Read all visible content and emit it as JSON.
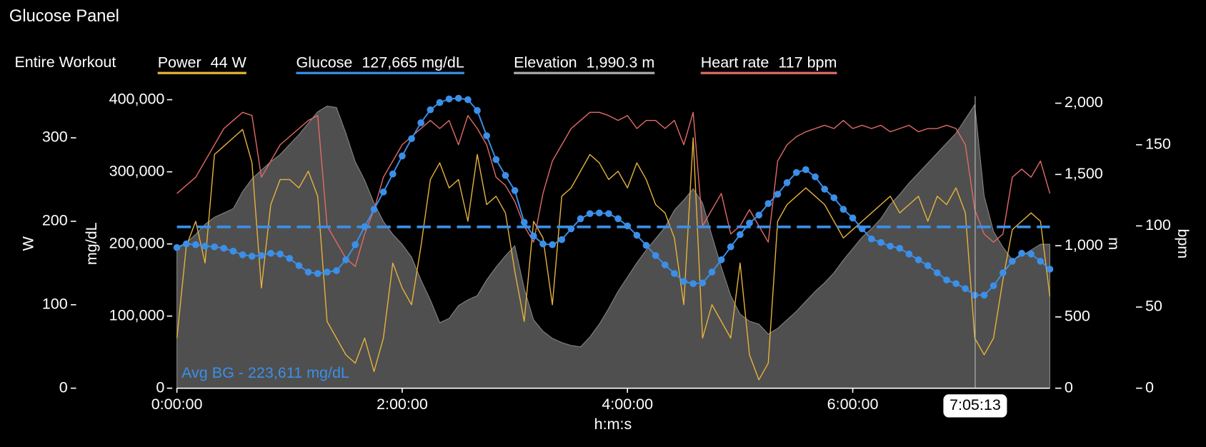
{
  "chart_data": {
    "type": "line",
    "title": "Glucose Panel",
    "legend_title": "Entire Workout",
    "xlabel": "h:m:s",
    "xlim": [
      0,
      27900
    ],
    "xticks": [
      {
        "value": 0,
        "label": "0:00:00"
      },
      {
        "value": 7200,
        "label": "2:00:00"
      },
      {
        "value": 14400,
        "label": "4:00:00"
      },
      {
        "value": 21600,
        "label": "6:00:00"
      }
    ],
    "ylabel": "W",
    "ylim": [
      0,
      350
    ],
    "yticks": [
      0,
      100,
      200,
      300
    ],
    "y2label": "mg/dL",
    "y2lim": [
      0,
      405000
    ],
    "y2ticks": [
      0,
      {
        "value": 100000,
        "label": "100,000"
      },
      {
        "value": 200000,
        "label": "200,000"
      },
      {
        "value": 300000,
        "label": "300,000"
      },
      {
        "value": 400000,
        "label": "400,000"
      }
    ],
    "y3label": "m",
    "y3lim": [
      0,
      2050
    ],
    "y3ticks": [
      0,
      500,
      {
        "value": 1000,
        "label": "1,000"
      },
      {
        "value": 1500,
        "label": "1,500"
      },
      {
        "value": 2000,
        "label": "2,000"
      }
    ],
    "y4label": "bpm",
    "y4lim": [
      0,
      180
    ],
    "y4ticks": [
      0,
      50,
      100,
      150
    ],
    "grid": false,
    "crosshair": {
      "value": 25513,
      "label": "7:05:13"
    },
    "avg_bg": {
      "value": 223611,
      "label": "Avg BG - 223,611 mg/dL",
      "axis": "y2",
      "color": "#3b8fe8"
    },
    "x": [
      0,
      300,
      600,
      900,
      1200,
      1500,
      1800,
      2100,
      2400,
      2700,
      3000,
      3300,
      3600,
      3900,
      4200,
      4500,
      4800,
      5100,
      5400,
      5700,
      6000,
      6300,
      6600,
      6900,
      7200,
      7500,
      7800,
      8100,
      8400,
      8700,
      9000,
      9300,
      9600,
      9900,
      10200,
      10500,
      10800,
      11100,
      11400,
      11700,
      12000,
      12300,
      12600,
      12900,
      13200,
      13500,
      13800,
      14100,
      14400,
      14700,
      15000,
      15300,
      15600,
      15900,
      16200,
      16500,
      16800,
      17100,
      17400,
      17700,
      18000,
      18300,
      18600,
      18900,
      19200,
      19500,
      19800,
      20100,
      20400,
      20700,
      21000,
      21300,
      21600,
      21900,
      22200,
      22500,
      22800,
      23100,
      23400,
      23700,
      24000,
      24300,
      24600,
      24900,
      25200,
      25500,
      25800,
      26100,
      26400,
      26700,
      27000,
      27300,
      27600,
      27900
    ],
    "series": [
      {
        "name": "Power",
        "readout": "44 W",
        "color": "#e6b23c",
        "axis": "y",
        "style": "line",
        "markers": false,
        "values": [
          60,
          170,
          200,
          150,
          280,
          290,
          300,
          310,
          270,
          120,
          220,
          250,
          250,
          240,
          260,
          230,
          80,
          60,
          40,
          30,
          60,
          20,
          60,
          150,
          120,
          100,
          170,
          250,
          270,
          240,
          250,
          200,
          280,
          220,
          230,
          210,
          140,
          80,
          200,
          180,
          100,
          230,
          240,
          260,
          280,
          270,
          250,
          260,
          240,
          270,
          250,
          220,
          210,
          180,
          100,
          300,
          60,
          100,
          80,
          60,
          150,
          40,
          10,
          30,
          200,
          220,
          230,
          240,
          230,
          220,
          200,
          180,
          190,
          200,
          210,
          220,
          230,
          210,
          220,
          230,
          200,
          230,
          220,
          240,
          210,
          60,
          40,
          60,
          130,
          190,
          200,
          210,
          200,
          110
        ]
      },
      {
        "name": "Glucose",
        "readout": "127,665 mg/dL",
        "color": "#3b8fe8",
        "axis": "y2",
        "style": "line",
        "markers": true,
        "values": [
          195000,
          200000,
          199000,
          197000,
          196000,
          194000,
          190000,
          185000,
          183000,
          184000,
          187000,
          186000,
          180000,
          170000,
          161000,
          159000,
          161000,
          163000,
          178000,
          199000,
          224000,
          248000,
          272000,
          297000,
          322000,
          346000,
          368000,
          386000,
          396000,
          401000,
          402000,
          400000,
          385000,
          350000,
          317000,
          295000,
          274000,
          230000,
          211000,
          200000,
          199000,
          206000,
          221000,
          235000,
          242000,
          243000,
          242000,
          235000,
          225000,
          212000,
          198000,
          184000,
          171000,
          159000,
          148000,
          145000,
          146000,
          161000,
          178000,
          196000,
          213000,
          229000,
          240000,
          256000,
          269000,
          285000,
          299000,
          303000,
          293000,
          276000,
          264000,
          248000,
          236000,
          221000,
          207000,
          202000,
          197000,
          194000,
          186000,
          178000,
          170000,
          160000,
          150000,
          145000,
          138000,
          129000,
          129000,
          142000,
          160000,
          176000,
          187000,
          186000,
          176000,
          165000
        ]
      },
      {
        "name": "Elevation",
        "readout": "1,990.3 m",
        "color": "#aaaaaa",
        "fill": "#4f4f4f",
        "axis": "y3",
        "style": "area",
        "markers": false,
        "values": [
          990,
          1020,
          1080,
          1150,
          1200,
          1230,
          1260,
          1380,
          1470,
          1530,
          1590,
          1640,
          1710,
          1780,
          1860,
          1940,
          1980,
          1970,
          1790,
          1590,
          1460,
          1300,
          1170,
          1080,
          1010,
          920,
          760,
          620,
          460,
          490,
          580,
          620,
          650,
          760,
          850,
          930,
          1000,
          700,
          480,
          400,
          350,
          320,
          300,
          290,
          360,
          450,
          560,
          680,
          780,
          880,
          970,
          1050,
          1130,
          1250,
          1320,
          1400,
          1300,
          1070,
          850,
          650,
          520,
          470,
          450,
          380,
          420,
          480,
          540,
          610,
          680,
          740,
          810,
          900,
          980,
          1060,
          1120,
          1190,
          1290,
          1360,
          1440,
          1510,
          1580,
          1650,
          1720,
          1790,
          1890,
          1990,
          1350,
          1100,
          990,
          900,
          930,
          970,
          1010,
          1010
        ]
      },
      {
        "name": "Heart rate",
        "readout": "117 bpm",
        "color": "#e06b66",
        "axis": "y4",
        "style": "line",
        "markers": false,
        "values": [
          120,
          125,
          130,
          140,
          150,
          160,
          165,
          170,
          168,
          130,
          140,
          150,
          155,
          160,
          165,
          168,
          100,
          90,
          80,
          75,
          95,
          110,
          130,
          140,
          150,
          155,
          160,
          165,
          160,
          165,
          150,
          168,
          160,
          150,
          130,
          125,
          115,
          100,
          90,
          120,
          140,
          150,
          160,
          165,
          170,
          170,
          168,
          165,
          168,
          160,
          165,
          165,
          160,
          165,
          150,
          170,
          100,
          110,
          120,
          95,
          100,
          110,
          100,
          90,
          140,
          150,
          155,
          158,
          160,
          162,
          160,
          165,
          160,
          162,
          160,
          162,
          158,
          160,
          162,
          158,
          160,
          160,
          162,
          160,
          150,
          110,
          95,
          90,
          95,
          130,
          135,
          130,
          140,
          120
        ]
      }
    ]
  }
}
